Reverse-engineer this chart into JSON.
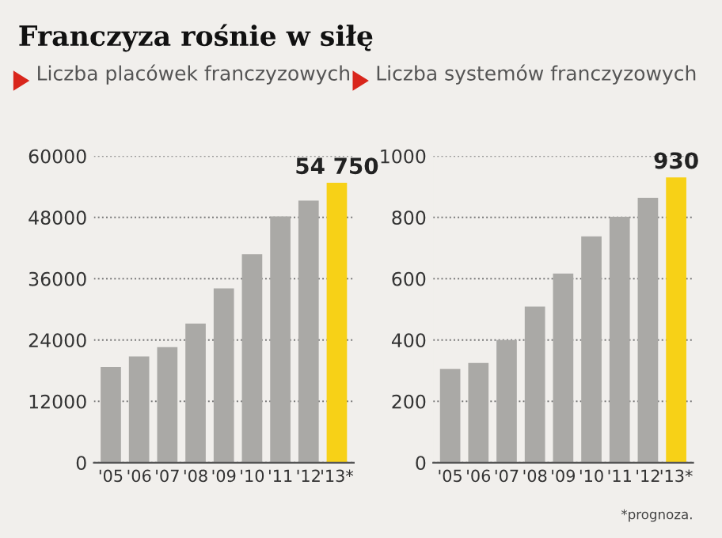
{
  "chart_data": [
    {
      "type": "bar",
      "title": "Franczyza rośnie w siłę",
      "subtitle": "Liczba placówek franczyzowych",
      "categories": [
        "'05",
        "'06",
        "'07",
        "'08",
        "'09",
        "'10",
        "'11",
        "'12",
        "'13*"
      ],
      "values": [
        18700,
        20800,
        22600,
        27200,
        34100,
        40800,
        48200,
        51300,
        54750
      ],
      "colors": [
        "#aaa9a6",
        "#aaa9a6",
        "#aaa9a6",
        "#aaa9a6",
        "#aaa9a6",
        "#aaa9a6",
        "#aaa9a6",
        "#aaa9a6",
        "#f7d117"
      ],
      "value_labels": [
        null,
        null,
        null,
        null,
        null,
        null,
        null,
        null,
        "54 750"
      ],
      "ylim": [
        0,
        60000
      ],
      "yticks": [
        0,
        12000,
        24000,
        36000,
        48000,
        60000
      ],
      "grid": "y"
    },
    {
      "type": "bar",
      "subtitle": "Liczba systemów franczyzowych",
      "categories": [
        "'05",
        "'06",
        "'07",
        "'08",
        "'09",
        "'10",
        "'11",
        "'12",
        "'13*"
      ],
      "values": [
        306,
        325,
        400,
        509,
        617,
        738,
        802,
        864,
        930
      ],
      "colors": [
        "#aaa9a6",
        "#aaa9a6",
        "#aaa9a6",
        "#aaa9a6",
        "#aaa9a6",
        "#aaa9a6",
        "#aaa9a6",
        "#aaa9a6",
        "#f7d117"
      ],
      "value_labels": [
        null,
        null,
        null,
        null,
        null,
        null,
        null,
        null,
        "930"
      ],
      "ylim": [
        0,
        1000
      ],
      "yticks": [
        0,
        200,
        400,
        600,
        800,
        1000
      ],
      "grid": "y",
      "annotations": [
        "*prognoza."
      ]
    }
  ]
}
